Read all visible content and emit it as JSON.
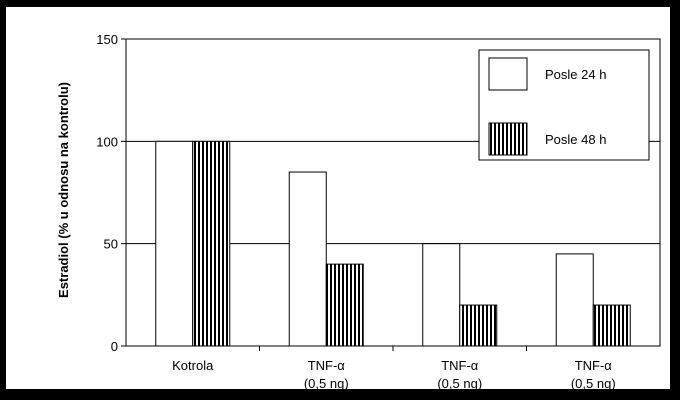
{
  "chart_data": {
    "type": "bar",
    "ylabel": "Estradiol (% u odnosu na kontrolu)",
    "xlabel": "",
    "ylim": [
      0,
      150
    ],
    "yticks": [
      0,
      50,
      100,
      150
    ],
    "grid": true,
    "legend_position": "top-right",
    "categories": [
      {
        "line1": "Kotrola",
        "line2": ""
      },
      {
        "line1": "TNF-α",
        "line2": "(0,5  ng)"
      },
      {
        "line1": "TNF-α",
        "line2": "(0,5  ng)"
      },
      {
        "line1": "TNF-α",
        "line2": "(0,5  ng)"
      }
    ],
    "series": [
      {
        "name": "Posle  24  h",
        "pattern": "solid-white",
        "values": [
          100,
          85,
          50,
          45
        ]
      },
      {
        "name": "Posle  48  h",
        "pattern": "vertical-stripes",
        "values": [
          100,
          40,
          20,
          20
        ]
      }
    ]
  },
  "colors": {
    "background": "#000000",
    "plot_area": "#ffffff",
    "bar_stroke": "#000000",
    "stripe": "#000000"
  }
}
